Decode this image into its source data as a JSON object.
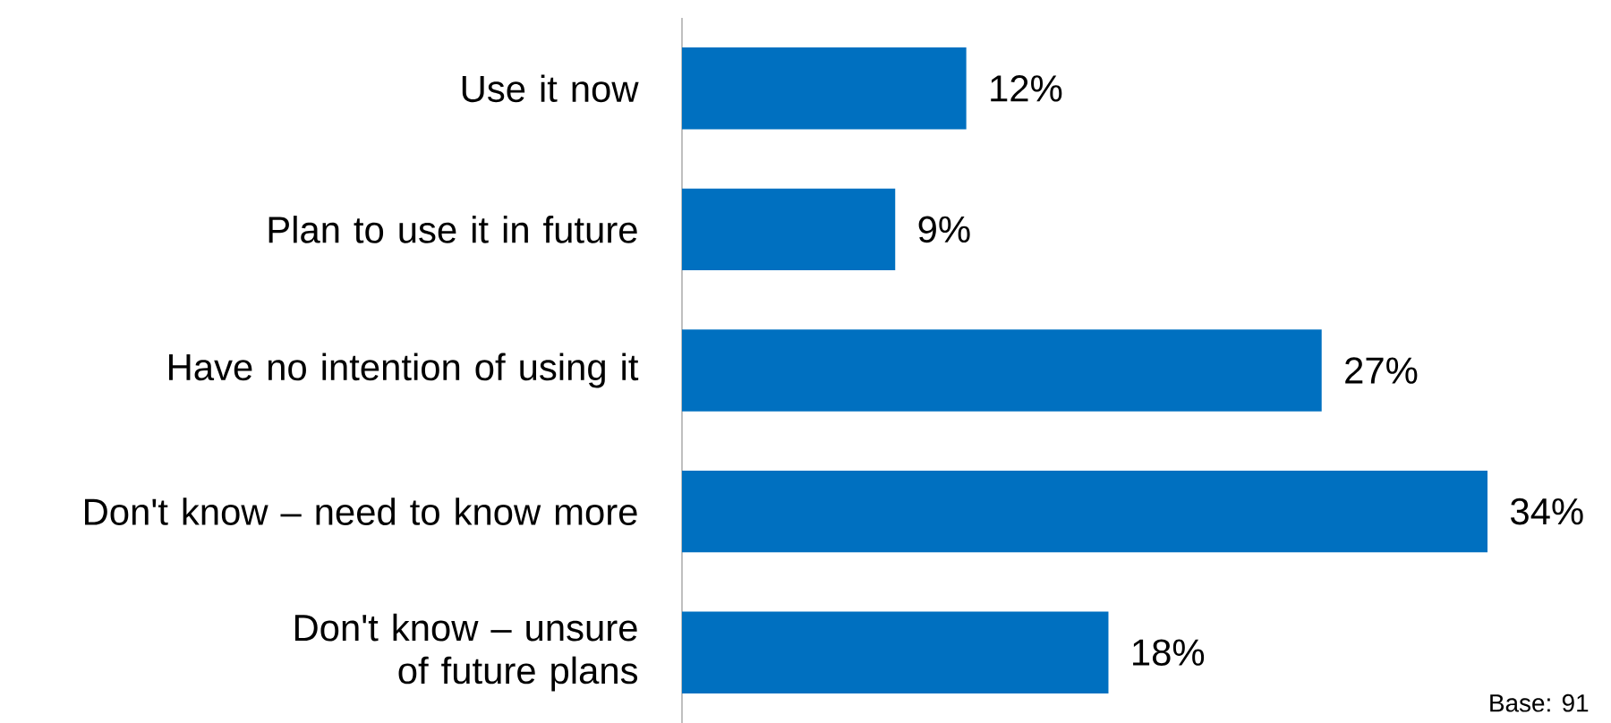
{
  "chart_data": {
    "type": "bar",
    "orientation": "horizontal",
    "categories": [
      "Use it now",
      "Plan to use it in future",
      "Have no intention of using it",
      "Don't know – need to know more",
      "Don't know – unsure of future plans"
    ],
    "values": [
      12,
      9,
      27,
      34,
      18
    ],
    "value_labels": [
      "12%",
      "9%",
      "27%",
      "34%",
      "18%"
    ],
    "color": "#0070c0",
    "annotations": [
      "Base: 91"
    ]
  }
}
